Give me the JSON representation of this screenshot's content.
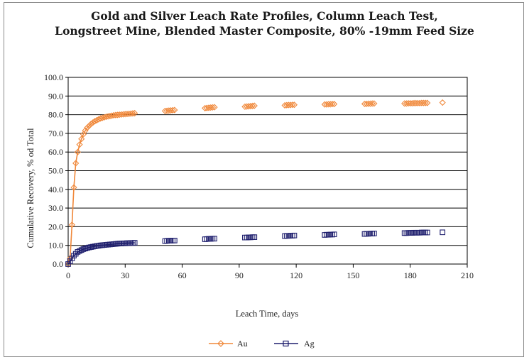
{
  "chart_data": {
    "type": "scatter",
    "title_line1": "Gold and Silver Leach Rate Profiles,  Column Leach Test,",
    "title_line2": "Longstreet Mine, Blended Master Composite, 80% -19mm Feed Size",
    "xlabel": "Leach Time, days",
    "ylabel": "Cumulative Recovery, % od Total",
    "xlim": [
      0,
      210
    ],
    "ylim": [
      0,
      100
    ],
    "xticks": [
      "0",
      "30",
      "60",
      "90",
      "120",
      "150",
      "180",
      "210"
    ],
    "yticks": [
      "0.0",
      "10.0",
      "20.0",
      "30.0",
      "40.0",
      "50.0",
      "60.0",
      "70.0",
      "80.0",
      "90.0",
      "100.0"
    ],
    "grid": "horizontal",
    "legend_position": "bottom",
    "series": [
      {
        "name": "Au",
        "color": "#f0883a",
        "marker": "diamond",
        "x": [
          0,
          1,
          2,
          3,
          4,
          5,
          6,
          7,
          8,
          9,
          10,
          11,
          12,
          13,
          14,
          15,
          16,
          17,
          18,
          19,
          20,
          21,
          22,
          23,
          24,
          25,
          26,
          27,
          28,
          29,
          30,
          31,
          32,
          33,
          34,
          35,
          51,
          52,
          53,
          54,
          55,
          56,
          72,
          73,
          74,
          75,
          76,
          77,
          93,
          94,
          95,
          96,
          97,
          98,
          114,
          115,
          116,
          117,
          118,
          119,
          135,
          136,
          137,
          138,
          139,
          140,
          156,
          157,
          158,
          159,
          160,
          161,
          177,
          178,
          179,
          180,
          181,
          182,
          183,
          184,
          185,
          186,
          187,
          188,
          189,
          197
        ],
        "y": [
          0,
          3,
          21,
          41,
          54,
          60,
          64,
          67,
          69.5,
          71.5,
          73,
          74,
          75,
          75.8,
          76.5,
          77,
          77.5,
          78,
          78.3,
          78.6,
          78.9,
          79.1,
          79.3,
          79.5,
          79.7,
          79.8,
          79.9,
          80,
          80.1,
          80.2,
          80.3,
          80.4,
          80.5,
          80.6,
          80.7,
          80.8,
          82,
          82.1,
          82.2,
          82.3,
          82.4,
          82.5,
          83.5,
          83.6,
          83.7,
          83.8,
          83.9,
          84,
          84.3,
          84.4,
          84.5,
          84.6,
          84.7,
          84.8,
          85,
          85.1,
          85.2,
          85.2,
          85.3,
          85.3,
          85.5,
          85.5,
          85.6,
          85.6,
          85.7,
          85.7,
          85.8,
          85.8,
          85.9,
          85.9,
          86,
          86,
          86,
          86,
          86.1,
          86.1,
          86.1,
          86.2,
          86.2,
          86.2,
          86.2,
          86.3,
          86.3,
          86.3,
          86.3,
          86.5
        ]
      },
      {
        "name": "Ag",
        "color": "#1f1f6e",
        "marker": "square",
        "x": [
          0,
          1,
          2,
          3,
          4,
          5,
          6,
          7,
          8,
          9,
          10,
          11,
          12,
          13,
          14,
          15,
          16,
          17,
          18,
          19,
          20,
          21,
          22,
          23,
          24,
          25,
          26,
          27,
          28,
          29,
          30,
          31,
          32,
          33,
          34,
          35,
          51,
          52,
          53,
          54,
          55,
          56,
          72,
          73,
          74,
          75,
          76,
          77,
          93,
          94,
          95,
          96,
          97,
          98,
          114,
          115,
          116,
          117,
          118,
          119,
          135,
          136,
          137,
          138,
          139,
          140,
          156,
          157,
          158,
          159,
          160,
          161,
          177,
          178,
          179,
          180,
          181,
          182,
          183,
          184,
          185,
          186,
          187,
          188,
          189,
          197
        ],
        "y": [
          0,
          1.5,
          3,
          4.5,
          5.5,
          6.5,
          7,
          7.5,
          8,
          8.3,
          8.6,
          8.9,
          9.1,
          9.3,
          9.5,
          9.7,
          9.8,
          10,
          10.1,
          10.2,
          10.3,
          10.4,
          10.5,
          10.6,
          10.7,
          10.8,
          10.9,
          11,
          11,
          11.1,
          11.1,
          11.2,
          11.2,
          11.3,
          11.3,
          11.4,
          12.3,
          12.4,
          12.5,
          12.5,
          12.6,
          12.6,
          13.3,
          13.4,
          13.5,
          13.5,
          13.6,
          13.6,
          14.2,
          14.2,
          14.3,
          14.3,
          14.4,
          14.4,
          15,
          15.1,
          15.1,
          15.2,
          15.2,
          15.3,
          15.6,
          15.7,
          15.7,
          15.8,
          15.8,
          15.9,
          16.1,
          16.2,
          16.2,
          16.3,
          16.3,
          16.4,
          16.6,
          16.6,
          16.7,
          16.7,
          16.7,
          16.8,
          16.8,
          16.8,
          16.8,
          16.9,
          16.9,
          16.9,
          16.9,
          17
        ]
      }
    ]
  }
}
